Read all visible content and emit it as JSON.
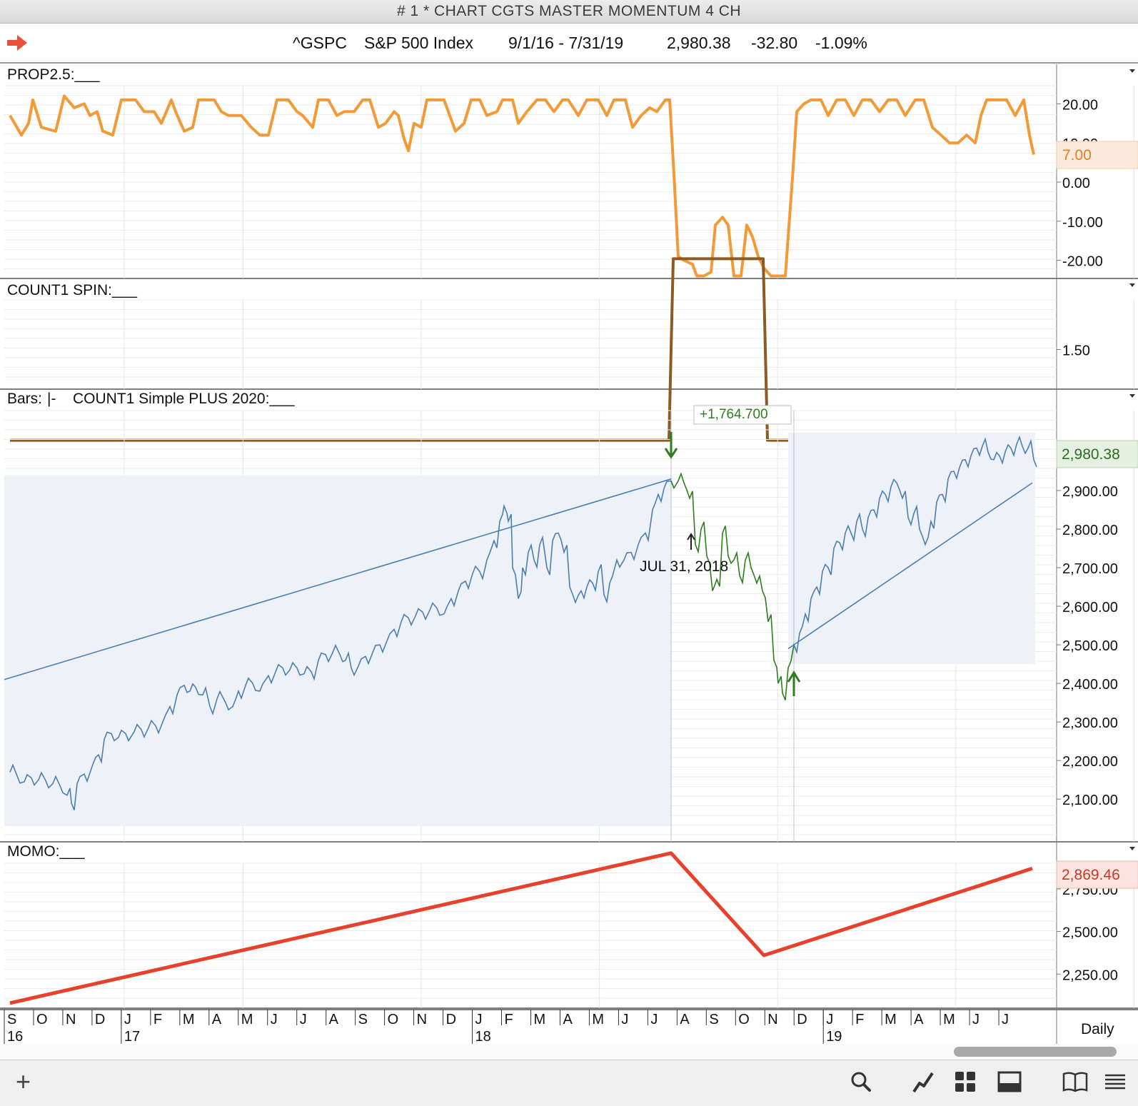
{
  "window": {
    "title": "# 1 * CHART CGTS MASTER MOMENTUM 4 CH"
  },
  "header": {
    "symbol": "^GSPC",
    "name": "S&P 500 Index",
    "date_range": "9/1/16 - 7/31/19",
    "last": "2,980.38",
    "change": "-32.80",
    "change_pct": "-1.09%"
  },
  "colors": {
    "orange": "#f39a36",
    "brown": "#8c5a23",
    "blue": "#4a7fb4",
    "green": "#2e7d1f",
    "red": "#e8412b",
    "shade": "#eef1f7"
  },
  "chart_data": [
    {
      "panel": "PROP2.5",
      "type": "line",
      "label": "PROP2.5:___",
      "y_ticks": [
        "20.00",
        "10.00",
        "0.00",
        "-10.00",
        "-20.00"
      ],
      "ylim": [
        -25,
        25
      ],
      "last_value_label": "7.00",
      "points": [
        [
          0,
          17
        ],
        [
          0.8,
          12
        ],
        [
          1.3,
          15
        ],
        [
          1.6,
          21
        ],
        [
          2.2,
          14
        ],
        [
          3.2,
          13
        ],
        [
          3.8,
          22
        ],
        [
          4.5,
          19
        ],
        [
          5.2,
          20
        ],
        [
          5.6,
          17
        ],
        [
          6.1,
          18
        ],
        [
          6.5,
          13
        ],
        [
          7.2,
          12
        ],
        [
          7.8,
          21
        ],
        [
          8.8,
          21
        ],
        [
          9.4,
          18
        ],
        [
          10.1,
          18
        ],
        [
          10.6,
          15
        ],
        [
          11.3,
          21
        ],
        [
          11.6,
          18
        ],
        [
          12.2,
          13
        ],
        [
          12.8,
          14
        ],
        [
          13.2,
          21
        ],
        [
          14.3,
          21
        ],
        [
          14.8,
          18
        ],
        [
          15.3,
          17
        ],
        [
          16.2,
          17
        ],
        [
          16.9,
          14
        ],
        [
          17.5,
          12
        ],
        [
          18.1,
          12
        ],
        [
          18.7,
          21
        ],
        [
          19.5,
          21
        ],
        [
          20.1,
          18
        ],
        [
          20.5,
          17
        ],
        [
          21.2,
          14
        ],
        [
          21.6,
          21
        ],
        [
          22.3,
          21
        ],
        [
          22.9,
          17
        ],
        [
          23.4,
          18
        ],
        [
          24.1,
          18
        ],
        [
          24.7,
          21
        ],
        [
          25.2,
          21
        ],
        [
          25.8,
          14
        ],
        [
          26.3,
          15
        ],
        [
          26.9,
          18
        ],
        [
          27.2,
          17
        ],
        [
          27.6,
          11
        ],
        [
          27.9,
          8
        ],
        [
          28.3,
          15
        ],
        [
          28.8,
          14
        ],
        [
          29.2,
          21
        ],
        [
          29.8,
          21
        ],
        [
          30.4,
          21
        ],
        [
          31.2,
          13
        ],
        [
          31.8,
          15
        ],
        [
          32.3,
          21
        ],
        [
          32.9,
          21
        ],
        [
          33.4,
          17
        ],
        [
          34.1,
          18
        ],
        [
          34.5,
          21
        ],
        [
          35.2,
          21
        ],
        [
          35.6,
          15
        ],
        [
          36.2,
          18
        ],
        [
          36.9,
          21
        ],
        [
          37.5,
          21
        ],
        [
          38.1,
          18
        ],
        [
          38.7,
          21
        ],
        [
          39.1,
          21
        ],
        [
          39.8,
          17
        ],
        [
          40.4,
          21
        ],
        [
          41.2,
          21
        ],
        [
          41.8,
          17
        ],
        [
          42.3,
          21
        ],
        [
          43.1,
          21
        ],
        [
          43.6,
          14
        ],
        [
          44.2,
          17
        ],
        [
          44.8,
          19
        ],
        [
          45.3,
          18
        ],
        [
          45.9,
          21
        ],
        [
          46.2,
          21
        ],
        [
          46.5,
          2
        ],
        [
          46.8,
          -19
        ],
        [
          47.2,
          -20
        ],
        [
          47.8,
          -21
        ],
        [
          48.1,
          -24
        ],
        [
          48.6,
          -24
        ],
        [
          49.1,
          -23
        ],
        [
          49.4,
          -11
        ],
        [
          49.9,
          -9
        ],
        [
          50.3,
          -11
        ],
        [
          50.7,
          -24
        ],
        [
          51.2,
          -24
        ],
        [
          51.6,
          -11
        ],
        [
          52.0,
          -14
        ],
        [
          52.4,
          -19
        ],
        [
          52.8,
          -22
        ],
        [
          53.3,
          -24
        ],
        [
          53.8,
          -24
        ],
        [
          54.3,
          -24
        ],
        [
          54.8,
          1
        ],
        [
          55.1,
          18
        ],
        [
          55.6,
          20
        ],
        [
          56.1,
          21
        ],
        [
          56.8,
          21
        ],
        [
          57.3,
          17
        ],
        [
          57.9,
          21
        ],
        [
          58.5,
          21
        ],
        [
          59.1,
          17
        ],
        [
          59.7,
          21
        ],
        [
          60.3,
          21
        ],
        [
          60.9,
          18
        ],
        [
          61.5,
          21
        ],
        [
          62.1,
          21
        ],
        [
          62.7,
          17
        ],
        [
          63.4,
          21
        ],
        [
          64.0,
          21
        ],
        [
          64.6,
          14
        ],
        [
          65.2,
          12
        ],
        [
          65.8,
          10
        ],
        [
          66.4,
          10
        ],
        [
          67.0,
          12
        ],
        [
          67.6,
          10
        ],
        [
          68.0,
          17
        ],
        [
          68.4,
          21
        ],
        [
          69.2,
          21
        ],
        [
          69.8,
          21
        ],
        [
          70.4,
          17
        ],
        [
          71.0,
          21
        ],
        [
          71.4,
          12
        ],
        [
          71.7,
          7
        ]
      ]
    },
    {
      "panel": "COUNT1 SPIN",
      "type": "line",
      "label": "COUNT1 SPIN:___",
      "y_ticks": [
        "1.50"
      ],
      "ylim": [
        0.9,
        2.1
      ],
      "points": [
        [
          0,
          1
        ],
        [
          46.15,
          1
        ],
        [
          46.45,
          2
        ],
        [
          52.75,
          2
        ],
        [
          53.05,
          1
        ],
        [
          71.7,
          1
        ]
      ]
    },
    {
      "panel": "Price",
      "type": "bar",
      "label_bars": "Bars:",
      "label_study": "COUNT1 Simple PLUS 2020:___",
      "y_ticks": [
        "2,900.00",
        "2,800.00",
        "2,700.00",
        "2,600.00",
        "2,500.00",
        "2,400.00",
        "2,300.00",
        "2,200.00",
        "2,100.00"
      ],
      "ylim": [
        2030,
        3050
      ],
      "last_value_label": "2,980.38",
      "annotations": {
        "gain_label": "+1,764.700",
        "date_label": "JUL 31, 2018"
      },
      "trendlines": [
        {
          "from": [
            0,
            2410
          ],
          "to": [
            46.3,
            2930
          ]
        },
        {
          "from": [
            54.9,
            2490
          ],
          "to": [
            71.6,
            2920
          ]
        }
      ],
      "shaded_ranges": [
        {
          "from": 0,
          "to": 46.3,
          "y": [
            2030,
            2940
          ]
        },
        {
          "from": 54.9,
          "to": 71.8,
          "y": [
            2450,
            3050
          ]
        }
      ],
      "green_range": [
        46.3,
        54.9
      ],
      "points": [
        [
          0,
          2170
        ],
        [
          0.5,
          2160
        ],
        [
          1,
          2145
        ],
        [
          1.5,
          2155
        ],
        [
          2,
          2150
        ],
        [
          2.5,
          2148
        ],
        [
          3,
          2140
        ],
        [
          3.5,
          2135
        ],
        [
          4,
          2110
        ],
        [
          4.3,
          2090
        ],
        [
          4.7,
          2140
        ],
        [
          5.2,
          2165
        ],
        [
          5.8,
          2190
        ],
        [
          6.2,
          2215
        ],
        [
          6.6,
          2255
        ],
        [
          7.1,
          2270
        ],
        [
          7.6,
          2260
        ],
        [
          8.1,
          2270
        ],
        [
          8.7,
          2275
        ],
        [
          9.2,
          2280
        ],
        [
          9.7,
          2285
        ],
        [
          10.2,
          2290
        ],
        [
          10.7,
          2300
        ],
        [
          11.2,
          2340
        ],
        [
          11.7,
          2370
        ],
        [
          12.2,
          2395
        ],
        [
          12.6,
          2380
        ],
        [
          13.0,
          2390
        ],
        [
          13.5,
          2370
        ],
        [
          14.0,
          2340
        ],
        [
          14.5,
          2360
        ],
        [
          15.1,
          2350
        ],
        [
          15.6,
          2340
        ],
        [
          16.0,
          2380
        ],
        [
          16.5,
          2395
        ],
        [
          17.0,
          2400
        ],
        [
          17.5,
          2380
        ],
        [
          18.1,
          2420
        ],
        [
          18.6,
          2430
        ],
        [
          19.1,
          2440
        ],
        [
          19.6,
          2435
        ],
        [
          20.1,
          2440
        ],
        [
          20.6,
          2425
        ],
        [
          21.1,
          2430
        ],
        [
          21.6,
          2460
        ],
        [
          22.1,
          2475
        ],
        [
          22.6,
          2480
        ],
        [
          23.1,
          2475
        ],
        [
          23.5,
          2460
        ],
        [
          23.9,
          2440
        ],
        [
          24.4,
          2445
        ],
        [
          24.9,
          2470
        ],
        [
          25.4,
          2480
        ],
        [
          25.9,
          2500
        ],
        [
          26.4,
          2510
        ],
        [
          26.9,
          2540
        ],
        [
          27.4,
          2560
        ],
        [
          27.9,
          2570
        ],
        [
          28.4,
          2575
        ],
        [
          28.9,
          2585
        ],
        [
          29.4,
          2590
        ],
        [
          29.9,
          2595
        ],
        [
          30.4,
          2580
        ],
        [
          30.9,
          2620
        ],
        [
          31.4,
          2640
        ],
        [
          31.9,
          2665
        ],
        [
          32.4,
          2685
        ],
        [
          32.9,
          2690
        ],
        [
          33.4,
          2720
        ],
        [
          33.9,
          2770
        ],
        [
          34.3,
          2820
        ],
        [
          34.6,
          2860
        ],
        [
          34.9,
          2820
        ],
        [
          35.2,
          2700
        ],
        [
          35.6,
          2620
        ],
        [
          35.9,
          2700
        ],
        [
          36.3,
          2740
        ],
        [
          36.7,
          2720
        ],
        [
          37.1,
          2760
        ],
        [
          37.6,
          2700
        ],
        [
          38.0,
          2770
        ],
        [
          38.4,
          2790
        ],
        [
          38.8,
          2740
        ],
        [
          39.2,
          2650
        ],
        [
          39.6,
          2610
        ],
        [
          40.0,
          2640
        ],
        [
          40.4,
          2650
        ],
        [
          40.8,
          2660
        ],
        [
          41.2,
          2690
        ],
        [
          41.6,
          2630
        ],
        [
          42.0,
          2660
        ],
        [
          42.5,
          2720
        ],
        [
          43.0,
          2720
        ],
        [
          43.5,
          2740
        ],
        [
          44.0,
          2760
        ],
        [
          44.5,
          2790
        ],
        [
          45.0,
          2850
        ],
        [
          45.4,
          2890
        ],
        [
          45.8,
          2905
        ],
        [
          46.3,
          2925
        ],
        [
          46.8,
          2925
        ],
        [
          47.2,
          2920
        ],
        [
          47.6,
          2880
        ],
        [
          48.0,
          2760
        ],
        [
          48.4,
          2800
        ],
        [
          48.8,
          2730
        ],
        [
          49.2,
          2640
        ],
        [
          49.5,
          2670
        ],
        [
          49.9,
          2790
        ],
        [
          50.3,
          2730
        ],
        [
          50.7,
          2720
        ],
        [
          51.1,
          2680
        ],
        [
          51.5,
          2720
        ],
        [
          51.9,
          2700
        ],
        [
          52.3,
          2660
        ],
        [
          52.7,
          2640
        ],
        [
          53.1,
          2560
        ],
        [
          53.5,
          2460
        ],
        [
          53.8,
          2400
        ],
        [
          54.1,
          2375
        ],
        [
          54.5,
          2440
        ],
        [
          54.9,
          2500
        ],
        [
          55.3,
          2530
        ],
        [
          55.7,
          2580
        ],
        [
          56.1,
          2620
        ],
        [
          56.5,
          2650
        ],
        [
          56.9,
          2690
        ],
        [
          57.3,
          2700
        ],
        [
          57.7,
          2750
        ],
        [
          58.1,
          2765
        ],
        [
          58.5,
          2790
        ],
        [
          58.9,
          2790
        ],
        [
          59.3,
          2820
        ],
        [
          59.7,
          2800
        ],
        [
          60.1,
          2830
        ],
        [
          60.5,
          2850
        ],
        [
          60.9,
          2880
        ],
        [
          61.3,
          2890
        ],
        [
          61.7,
          2910
        ],
        [
          62.1,
          2920
        ],
        [
          62.5,
          2880
        ],
        [
          62.9,
          2830
        ],
        [
          63.3,
          2840
        ],
        [
          63.7,
          2800
        ],
        [
          64.1,
          2760
        ],
        [
          64.5,
          2820
        ],
        [
          64.9,
          2870
        ],
        [
          65.3,
          2890
        ],
        [
          65.7,
          2930
        ],
        [
          66.1,
          2950
        ],
        [
          66.5,
          2960
        ],
        [
          66.9,
          2980
        ],
        [
          67.3,
          2990
        ],
        [
          67.7,
          3010
        ],
        [
          68.1,
          3015
        ],
        [
          68.5,
          3000
        ],
        [
          68.9,
          2980
        ],
        [
          69.3,
          2990
        ],
        [
          69.7,
          3000
        ],
        [
          70.1,
          3010
        ],
        [
          70.5,
          3020
        ],
        [
          70.9,
          3015
        ],
        [
          71.3,
          3010
        ],
        [
          71.7,
          2980
        ]
      ]
    },
    {
      "panel": "MOMO",
      "type": "line",
      "label": "MOMO:___",
      "y_ticks": [
        "2,750.00",
        "2,500.00",
        "2,250.00"
      ],
      "ylim": [
        2050,
        2980
      ],
      "last_value_label": "2,869.46",
      "points": [
        [
          0,
          2080
        ],
        [
          46.3,
          2960
        ],
        [
          52.8,
          2360
        ],
        [
          71.6,
          2870
        ]
      ]
    }
  ],
  "x_axis": {
    "months": [
      "S",
      "O",
      "N",
      "D",
      "J",
      "F",
      "M",
      "A",
      "M",
      "J",
      "J",
      "A",
      "S",
      "O",
      "N",
      "D",
      "J",
      "F",
      "M",
      "A",
      "M",
      "J",
      "J",
      "A",
      "S",
      "O",
      "N",
      "D",
      "J",
      "F",
      "M",
      "A",
      "M",
      "J",
      "J"
    ],
    "years": [
      {
        "index": 0,
        "label": "16"
      },
      {
        "index": 4,
        "label": "17"
      },
      {
        "index": 16,
        "label": "18"
      },
      {
        "index": 28,
        "label": "19"
      }
    ],
    "interval": "Daily"
  },
  "toolbar": {
    "add_label": "+",
    "icons": [
      "magnifier-icon",
      "chart-tool-icon",
      "grid-icon",
      "panel-icon",
      "book-icon",
      "menu-icon"
    ]
  }
}
